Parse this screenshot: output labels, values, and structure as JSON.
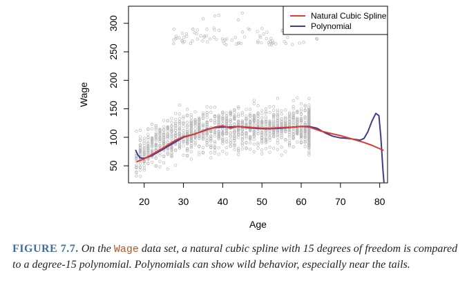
{
  "chart_data": {
    "type": "scatter",
    "xlabel": "Age",
    "ylabel": "Wage",
    "xlim": [
      16,
      82
    ],
    "ylim": [
      20,
      330
    ],
    "xticks": [
      20,
      30,
      40,
      50,
      60,
      70,
      80
    ],
    "yticks": [
      50,
      100,
      150,
      200,
      250,
      300
    ],
    "legend": {
      "position": "top-right",
      "entries": [
        {
          "name": "Natural Cubic Spline",
          "color": "#e03a2f"
        },
        {
          "name": "Polynomial",
          "color": "#3a3a9a"
        }
      ]
    },
    "series": [
      {
        "name": "Natural Cubic Spline",
        "color": "#e03a2f",
        "x": [
          18,
          20,
          22,
          25,
          28,
          30,
          33,
          36,
          38,
          40,
          42,
          44,
          46,
          48,
          50,
          52,
          55,
          58,
          60,
          62,
          65,
          68,
          70,
          73,
          76,
          78,
          81
        ],
        "y": [
          57,
          62,
          70,
          82,
          95,
          101,
          106,
          113,
          118,
          120,
          116,
          119,
          118,
          117,
          116,
          116,
          117,
          118,
          119,
          118,
          111,
          106,
          103,
          97,
          91,
          86,
          77
        ]
      },
      {
        "name": "Polynomial",
        "color": "#3a3a9a",
        "x": [
          17.8,
          18.3,
          19,
          20,
          22,
          25,
          28,
          30,
          33,
          36,
          38,
          40,
          42,
          44,
          46,
          48,
          50,
          52,
          55,
          58,
          60,
          62,
          64,
          66,
          68,
          70,
          72,
          74,
          75,
          76,
          77,
          78,
          79,
          79.8,
          80.3,
          80.8,
          81.2
        ],
        "y": [
          78,
          70,
          64,
          63,
          68,
          80,
          92,
          100,
          106,
          114,
          117,
          118,
          118,
          119,
          117,
          116,
          115,
          115,
          116,
          118,
          119,
          119,
          116,
          108,
          102,
          99,
          98,
          96,
          95,
          98,
          110,
          128,
          142,
          138,
          100,
          45,
          10
        ]
      }
    ]
  },
  "caption": {
    "label": "FIGURE 7.7.",
    "text_1": " On the ",
    "code": "Wage",
    "text_2": " data set, a natural cubic spline with 15 degrees of freedom is compared to a degree-15 polynomial. Polynomials can show wild behavior, especially near the tails."
  }
}
